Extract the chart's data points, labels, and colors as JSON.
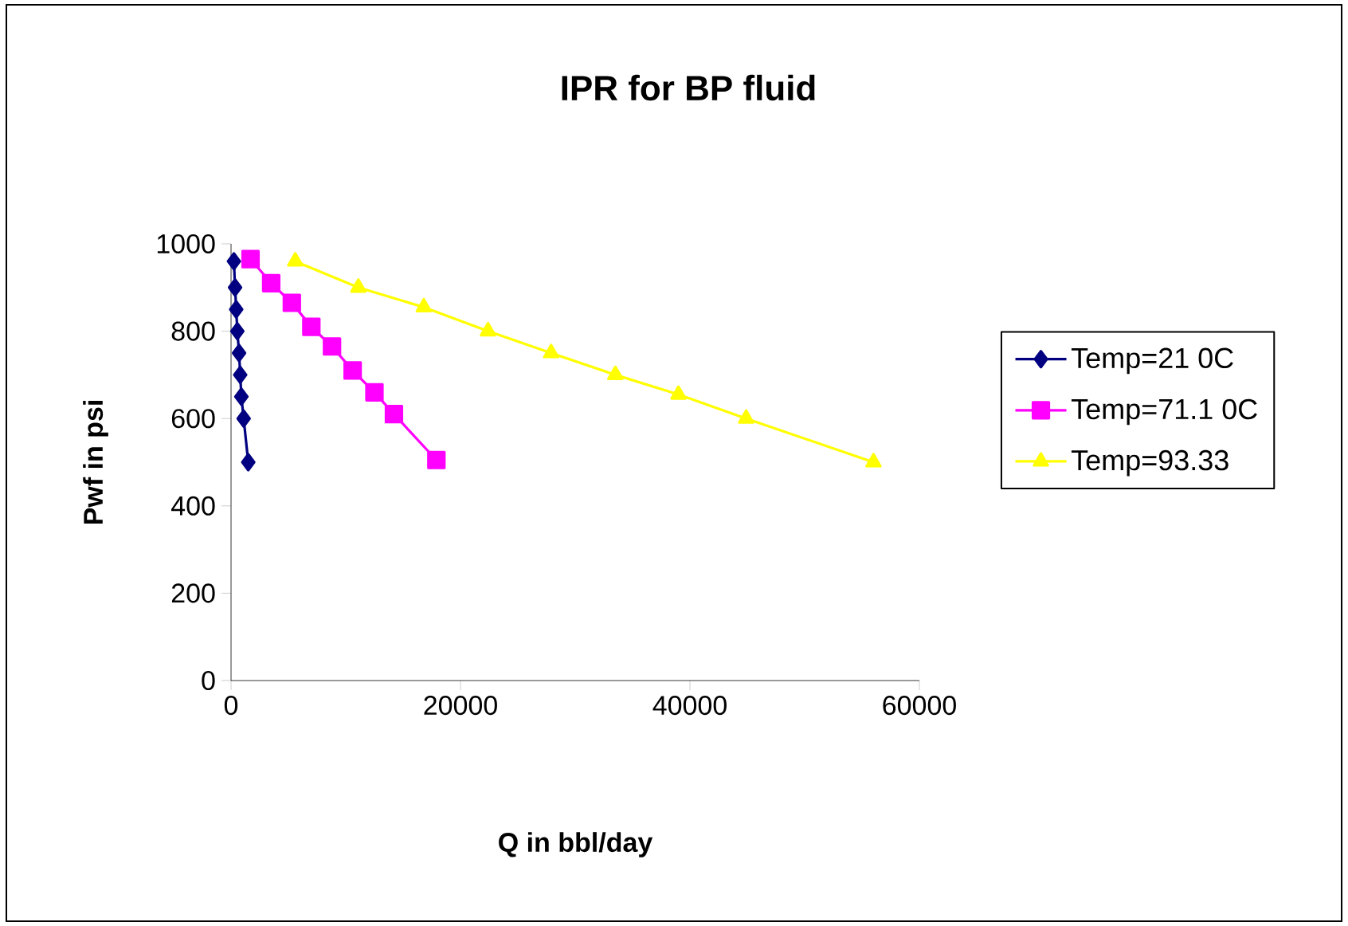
{
  "chart_data": {
    "type": "line",
    "title": "IPR for BP fluid",
    "xlabel": "Q in bbl/day",
    "ylabel": "Pwf in psi",
    "xlim": [
      0,
      60000
    ],
    "xticks": [
      0,
      20000,
      40000,
      60000
    ],
    "ylim": [
      0,
      1000
    ],
    "yticks": [
      0,
      200,
      400,
      600,
      800,
      1000
    ],
    "legend": "right",
    "series": [
      {
        "name": "Temp=21 0C",
        "color": "#000080",
        "marker": "diamond",
        "x": [
          250,
          350,
          450,
          550,
          700,
          800,
          900,
          1100,
          1500
        ],
        "values": [
          960,
          900,
          850,
          800,
          750,
          700,
          650,
          600,
          500
        ]
      },
      {
        "name": "Temp=71.1 0C",
        "color": "#ff00ff",
        "marker": "square",
        "x": [
          1700,
          3500,
          5300,
          7000,
          8800,
          10600,
          12500,
          14200,
          17900
        ],
        "values": [
          965,
          910,
          865,
          810,
          765,
          710,
          660,
          610,
          505
        ]
      },
      {
        "name": "Temp=93.33",
        "color": "#ffff00",
        "marker": "triangle",
        "x": [
          5600,
          11100,
          16800,
          22400,
          27900,
          33500,
          39000,
          44900,
          56000
        ],
        "values": [
          960,
          900,
          855,
          800,
          750,
          700,
          655,
          600,
          500
        ]
      }
    ]
  }
}
